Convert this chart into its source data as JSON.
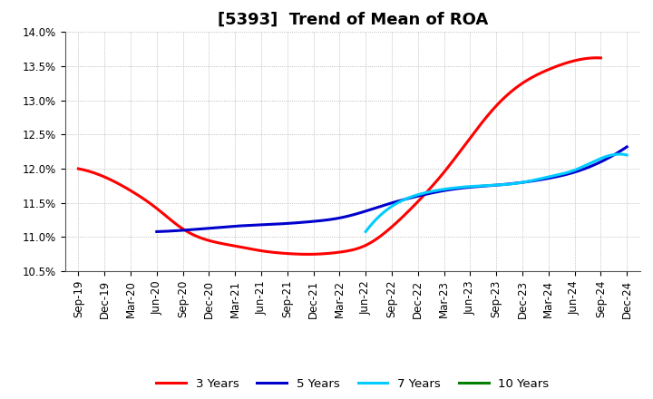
{
  "title": "[5393]  Trend of Mean of ROA",
  "ylim": [
    10.5,
    14.0
  ],
  "yticks": [
    10.5,
    11.0,
    11.5,
    12.0,
    12.5,
    13.0,
    13.5,
    14.0
  ],
  "ytick_labels": [
    "10.5%",
    "11.0%",
    "11.5%",
    "12.0%",
    "12.5%",
    "13.0%",
    "13.5%",
    "14.0%"
  ],
  "x_labels": [
    "Sep-19",
    "Dec-19",
    "Mar-20",
    "Jun-20",
    "Sep-20",
    "Dec-20",
    "Mar-21",
    "Jun-21",
    "Sep-21",
    "Dec-21",
    "Mar-22",
    "Jun-22",
    "Sep-22",
    "Dec-22",
    "Mar-23",
    "Jun-23",
    "Sep-23",
    "Dec-23",
    "Mar-24",
    "Jun-24",
    "Sep-24",
    "Dec-24"
  ],
  "series_3yr": {
    "label": "3 Years",
    "color": "#FF0000",
    "values": [
      12.0,
      11.88,
      11.68,
      11.42,
      11.12,
      10.95,
      10.87,
      10.8,
      10.76,
      10.75,
      10.78,
      10.88,
      11.15,
      11.52,
      11.95,
      12.45,
      12.92,
      13.25,
      13.45,
      13.58,
      13.62,
      null
    ]
  },
  "series_5yr": {
    "label": "5 Years",
    "color": "#0000CC",
    "values": [
      null,
      null,
      null,
      11.08,
      11.1,
      11.13,
      11.16,
      11.18,
      11.2,
      11.23,
      11.28,
      11.38,
      11.5,
      11.6,
      11.68,
      11.73,
      11.76,
      11.8,
      11.86,
      11.95,
      12.1,
      12.32
    ]
  },
  "series_7yr": {
    "label": "7 Years",
    "color": "#00CCFF",
    "values": [
      null,
      null,
      null,
      null,
      null,
      null,
      null,
      null,
      null,
      null,
      null,
      11.08,
      11.45,
      11.62,
      11.7,
      11.74,
      11.76,
      11.8,
      11.88,
      11.98,
      12.15,
      12.2
    ]
  },
  "series_10yr": {
    "label": "10 Years",
    "color": "#008000",
    "values": [
      null,
      null,
      null,
      null,
      null,
      null,
      null,
      null,
      null,
      null,
      null,
      null,
      null,
      null,
      null,
      null,
      null,
      null,
      null,
      null,
      null,
      null
    ]
  },
  "background_color": "#FFFFFF",
  "plot_bg_color": "#FFFFFF",
  "grid_color": "#AAAAAA",
  "title_fontsize": 13,
  "tick_fontsize": 8.5,
  "legend_fontsize": 9.5
}
